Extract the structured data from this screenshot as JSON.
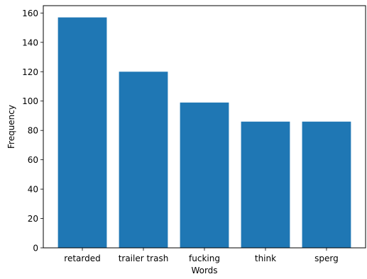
{
  "chart_data": {
    "type": "bar",
    "title": "",
    "xlabel": "Words",
    "ylabel": "Frequency",
    "categories": [
      "retarded",
      "trailer trash",
      "fucking",
      "think",
      "sperg"
    ],
    "values": [
      157,
      120,
      99,
      86,
      86
    ],
    "ylim": [
      0,
      165
    ],
    "yticks": [
      0,
      20,
      40,
      60,
      80,
      100,
      120,
      140,
      160
    ],
    "grid": false,
    "legend": "none",
    "bar_color": "#1f77b4"
  }
}
